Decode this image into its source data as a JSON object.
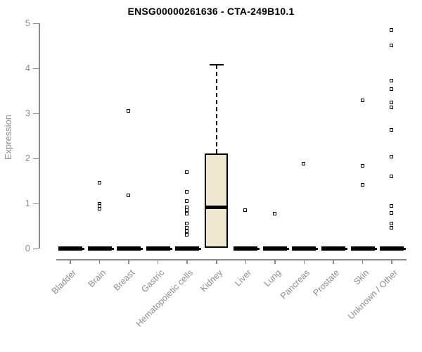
{
  "title": "ENSG00000261636 - CTA-249B10.1",
  "chart_data": {
    "type": "boxplot",
    "title": "ENSG00000261636 - CTA-249B10.1",
    "xlabel": "",
    "ylabel": "Expression",
    "ylim": [
      0,
      5
    ],
    "yticks": [
      0,
      1,
      2,
      3,
      4,
      5
    ],
    "grid": false,
    "legend": false,
    "categories": [
      "Bladder",
      "Brain",
      "Breast",
      "Gastric",
      "Hematopoietic cells",
      "Kidney",
      "Liver",
      "Lung",
      "Pancreas",
      "Prostate",
      "Skin",
      "Unknown / Other"
    ],
    "series": [
      {
        "category": "Bladder",
        "q1": 0,
        "median": 0,
        "q3": 0,
        "whisker_low": 0,
        "whisker_high": 0,
        "outliers": []
      },
      {
        "category": "Brain",
        "q1": 0,
        "median": 0,
        "q3": 0,
        "whisker_low": 0,
        "whisker_high": 0,
        "outliers": [
          1.45,
          0.99,
          0.93,
          0.87
        ]
      },
      {
        "category": "Breast",
        "q1": 0,
        "median": 0,
        "q3": 0,
        "whisker_low": 0,
        "whisker_high": 0,
        "outliers": [
          3.05,
          1.17
        ]
      },
      {
        "category": "Gastric",
        "q1": 0,
        "median": 0,
        "q3": 0,
        "whisker_low": 0,
        "whisker_high": 0,
        "outliers": []
      },
      {
        "category": "Hematopoietic cells",
        "q1": 0,
        "median": 0,
        "q3": 0,
        "whisker_low": 0,
        "whisker_high": 0,
        "outliers": [
          1.69,
          1.25,
          1.05,
          0.91,
          0.84,
          0.77,
          0.55,
          0.45,
          0.37,
          0.3
        ]
      },
      {
        "category": "Kidney",
        "q1": 0.02,
        "median": 0.92,
        "q3": 2.11,
        "whisker_low": 0.02,
        "whisker_high": 4.08,
        "outliers": []
      },
      {
        "category": "Liver",
        "q1": 0,
        "median": 0,
        "q3": 0,
        "whisker_low": 0,
        "whisker_high": 0,
        "outliers": [
          0.85
        ]
      },
      {
        "category": "Lung",
        "q1": 0,
        "median": 0,
        "q3": 0,
        "whisker_low": 0,
        "whisker_high": 0,
        "outliers": [
          0.77
        ]
      },
      {
        "category": "Pancreas",
        "q1": 0,
        "median": 0,
        "q3": 0,
        "whisker_low": 0,
        "whisker_high": 0,
        "outliers": [
          1.88
        ]
      },
      {
        "category": "Prostate",
        "q1": 0,
        "median": 0,
        "q3": 0,
        "whisker_low": 0,
        "whisker_high": 0,
        "outliers": []
      },
      {
        "category": "Skin",
        "q1": 0,
        "median": 0,
        "q3": 0,
        "whisker_low": 0,
        "whisker_high": 0,
        "outliers": [
          3.28,
          1.83,
          1.41
        ]
      },
      {
        "category": "Unknown / Other",
        "q1": 0,
        "median": 0,
        "q3": 0,
        "whisker_low": 0,
        "whisker_high": 0,
        "outliers": [
          4.84,
          4.5,
          3.72,
          3.53,
          3.23,
          3.13,
          2.63,
          2.03,
          1.59,
          0.94,
          0.78,
          0.55,
          0.45
        ]
      }
    ],
    "colors": {
      "box_fill": "#EDE8CF",
      "box_border": "#000000",
      "median": "#000000",
      "axis": "#8c8c8c",
      "tick_text": "#8c8c8c",
      "title_text": "#000000",
      "background": "#ffffff"
    }
  }
}
